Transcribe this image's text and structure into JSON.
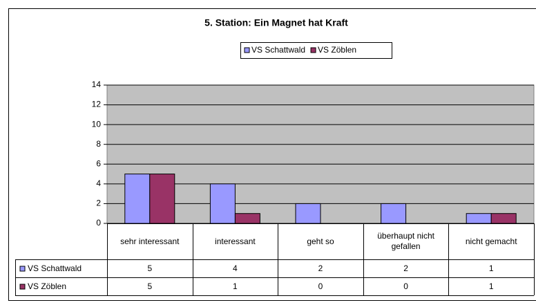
{
  "chart_data": {
    "type": "bar",
    "title": "5. Station: Ein Magnet hat Kraft",
    "categories": [
      "sehr interessant",
      "interessant",
      "geht so",
      "überhaupt nicht gefallen",
      "nicht gemacht"
    ],
    "series": [
      {
        "name": "VS Schattwald",
        "color": "#9999ff",
        "values": [
          5,
          4,
          2,
          2,
          1
        ]
      },
      {
        "name": "VS Zöblen",
        "color": "#993366",
        "values": [
          5,
          1,
          0,
          0,
          1
        ]
      }
    ],
    "ylim": [
      0,
      14
    ],
    "yticks": [
      0,
      2,
      4,
      6,
      8,
      10,
      12,
      14
    ],
    "grid": true,
    "plot_background": "#c0c0c0",
    "legend": "top"
  }
}
